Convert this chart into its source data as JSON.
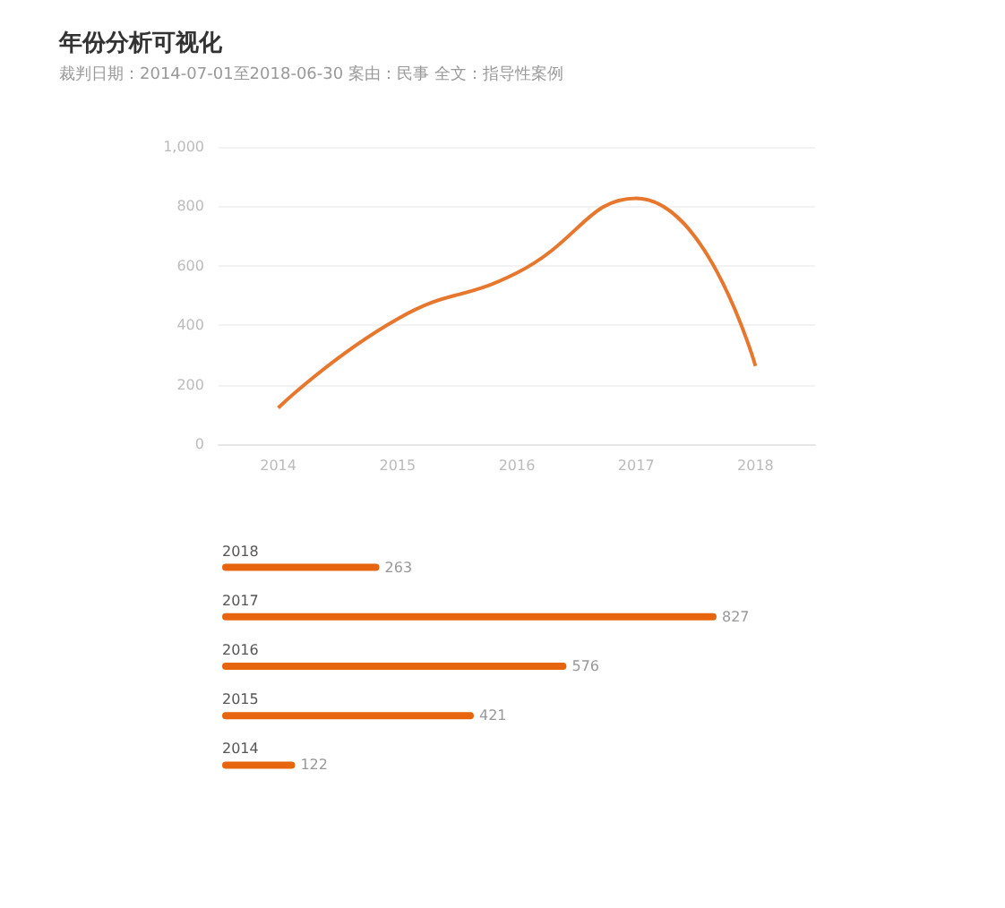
{
  "chart_data": [
    {
      "type": "line",
      "title": "年份分析可视化",
      "subtitle": "裁判日期：2014-07-01至2018-06-30  案由：民事  全文：指导性案例",
      "categories": [
        "2014",
        "2015",
        "2016",
        "2017",
        "2018"
      ],
      "series": [
        {
          "color": "#e8772e",
          "values": [
            122,
            421,
            576,
            827,
            263
          ]
        }
      ],
      "ylim": [
        0,
        1000
      ],
      "yticks": [
        0,
        200,
        400,
        600,
        800,
        {
          "value": 1000,
          "label": "1,000"
        }
      ],
      "grid": "y",
      "marker": "none",
      "line_style": "solid"
    },
    {
      "type": "bar",
      "orientation": "horizontal",
      "categories": [
        "2018",
        "2017",
        "2016",
        "2015",
        "2014"
      ],
      "series": [
        {
          "color": "#e8650f",
          "values": [
            263,
            827,
            576,
            421,
            122
          ]
        }
      ],
      "data_labels": true
    }
  ]
}
